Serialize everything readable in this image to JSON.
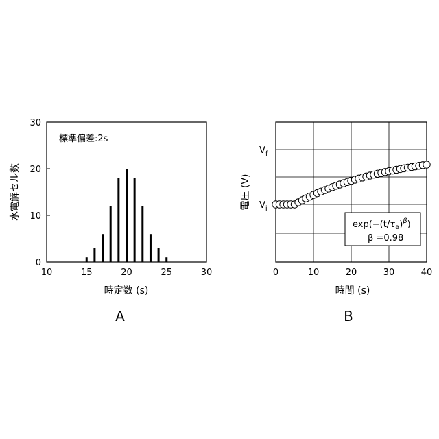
{
  "chart_data": [
    {
      "type": "bar",
      "panel_label": "A",
      "xlabel": "時定数 (s)",
      "ylabel": "水電解セル数",
      "annotation": "標準偏差:2s",
      "xlim": [
        10,
        30
      ],
      "ylim": [
        0,
        30
      ],
      "xticks": [
        10,
        15,
        20,
        25,
        30
      ],
      "yticks": [
        0,
        10,
        20,
        30
      ],
      "grid": false,
      "x": [
        15,
        16,
        17,
        18,
        19,
        20,
        21,
        22,
        23,
        24,
        25
      ],
      "values": [
        1,
        3,
        6,
        12,
        18,
        20,
        18,
        12,
        6,
        3,
        1
      ]
    },
    {
      "type": "scatter",
      "panel_label": "B",
      "xlabel": "時間 (s)",
      "ylabel": "電圧 (V)",
      "xlim": [
        0,
        40
      ],
      "xticks": [
        0,
        10,
        20,
        30,
        40
      ],
      "ytick_labels": [
        {
          "main": "V",
          "sub": "f"
        },
        {
          "main": "V",
          "sub": "i"
        }
      ],
      "grid": true,
      "annotation": {
        "formula_prefix": "exp(−(t/",
        "tau": "τ",
        "tau_sub": "a",
        "close": ")",
        "beta_sup": "β",
        "formula_end": ")",
        "beta_line": "β =0.98"
      },
      "model": {
        "Vi": 0,
        "Vf": 1,
        "t0": 5,
        "tau_a": 27,
        "beta": 0.98
      },
      "x": [
        0,
        1,
        2,
        3,
        4,
        5,
        6,
        7,
        8,
        9,
        10,
        11,
        12,
        13,
        14,
        15,
        16,
        17,
        18,
        19,
        20,
        21,
        22,
        23,
        24,
        25,
        26,
        27,
        28,
        29,
        30,
        31,
        32,
        33,
        34,
        35,
        36,
        37,
        38,
        39,
        40
      ]
    }
  ]
}
